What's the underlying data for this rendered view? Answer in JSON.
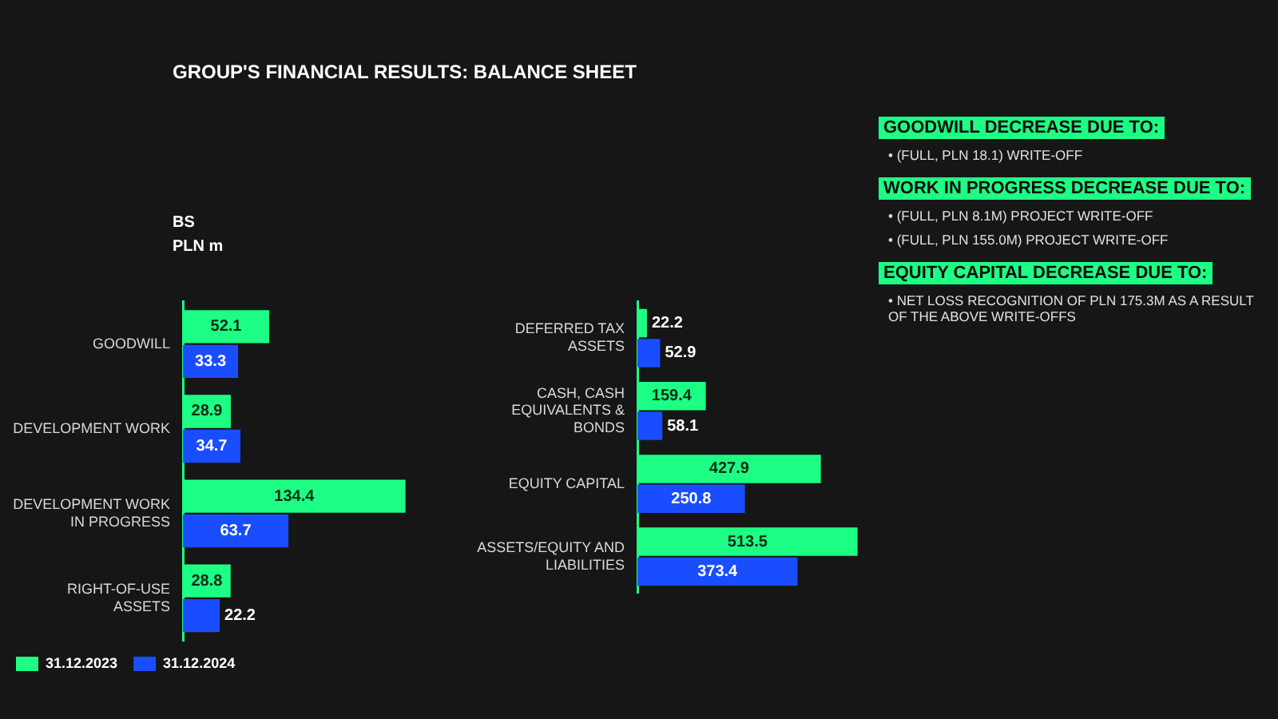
{
  "chart_data": [
    {
      "type": "bar",
      "orientation": "horizontal",
      "title": "GROUP'S FINANCIAL RESULTS: BALANCE SHEET",
      "annotations": [
        "BS",
        "PLN m"
      ],
      "categories": [
        "GOODWILL",
        "DEVELOPMENT WORK",
        "DEVELOPMENT WORK IN PROGRESS",
        "RIGHT-OF-USE ASSETS"
      ],
      "series": [
        {
          "name": "31.12.2023",
          "color": "#1dff84",
          "values": [
            52.1,
            28.9,
            134.4,
            28.8
          ]
        },
        {
          "name": "31.12.2024",
          "color": "#1a4dff",
          "values": [
            33.3,
            34.7,
            63.7,
            22.2
          ]
        }
      ],
      "data_labels": true,
      "legend": "bottom left"
    },
    {
      "type": "bar",
      "orientation": "horizontal",
      "categories": [
        "DEFERRED TAX ASSETS",
        "CASH, CASH EQUIVALENTS & BONDS",
        "EQUITY CAPITAL",
        "ASSETS/EQUITY AND LIABILITIES"
      ],
      "series": [
        {
          "color": "#1dff84",
          "values": [
            22.2,
            159.4,
            427.9,
            513.5
          ]
        },
        {
          "color": "#1a4dff",
          "values": [
            52.9,
            58.1,
            250.8,
            373.4
          ]
        }
      ],
      "data_labels": true
    },
    {
      "type": "other",
      "title": "GOODWILL DECREASE DUE TO:",
      "annotations": [
        "• (FULL, PLN 18.1) WRITE-OFF"
      ]
    },
    {
      "type": "other",
      "title": "WORK IN PROGRESS DECREASE DUE TO:",
      "annotations": [
        "• (FULL, PLN 8.1M) PROJECT WRITE-OFF",
        "• (FULL, PLN 155.0M) PROJECT WRITE-OFF"
      ]
    },
    {
      "type": "other",
      "title": "EQUITY CAPITAL DECREASE DUE TO:",
      "annotations": [
        "• NET LOSS RECOGNITION OF PLN 175.3M AS A RESULT OF THE ABOVE WRITE-OFFS"
      ]
    }
  ]
}
